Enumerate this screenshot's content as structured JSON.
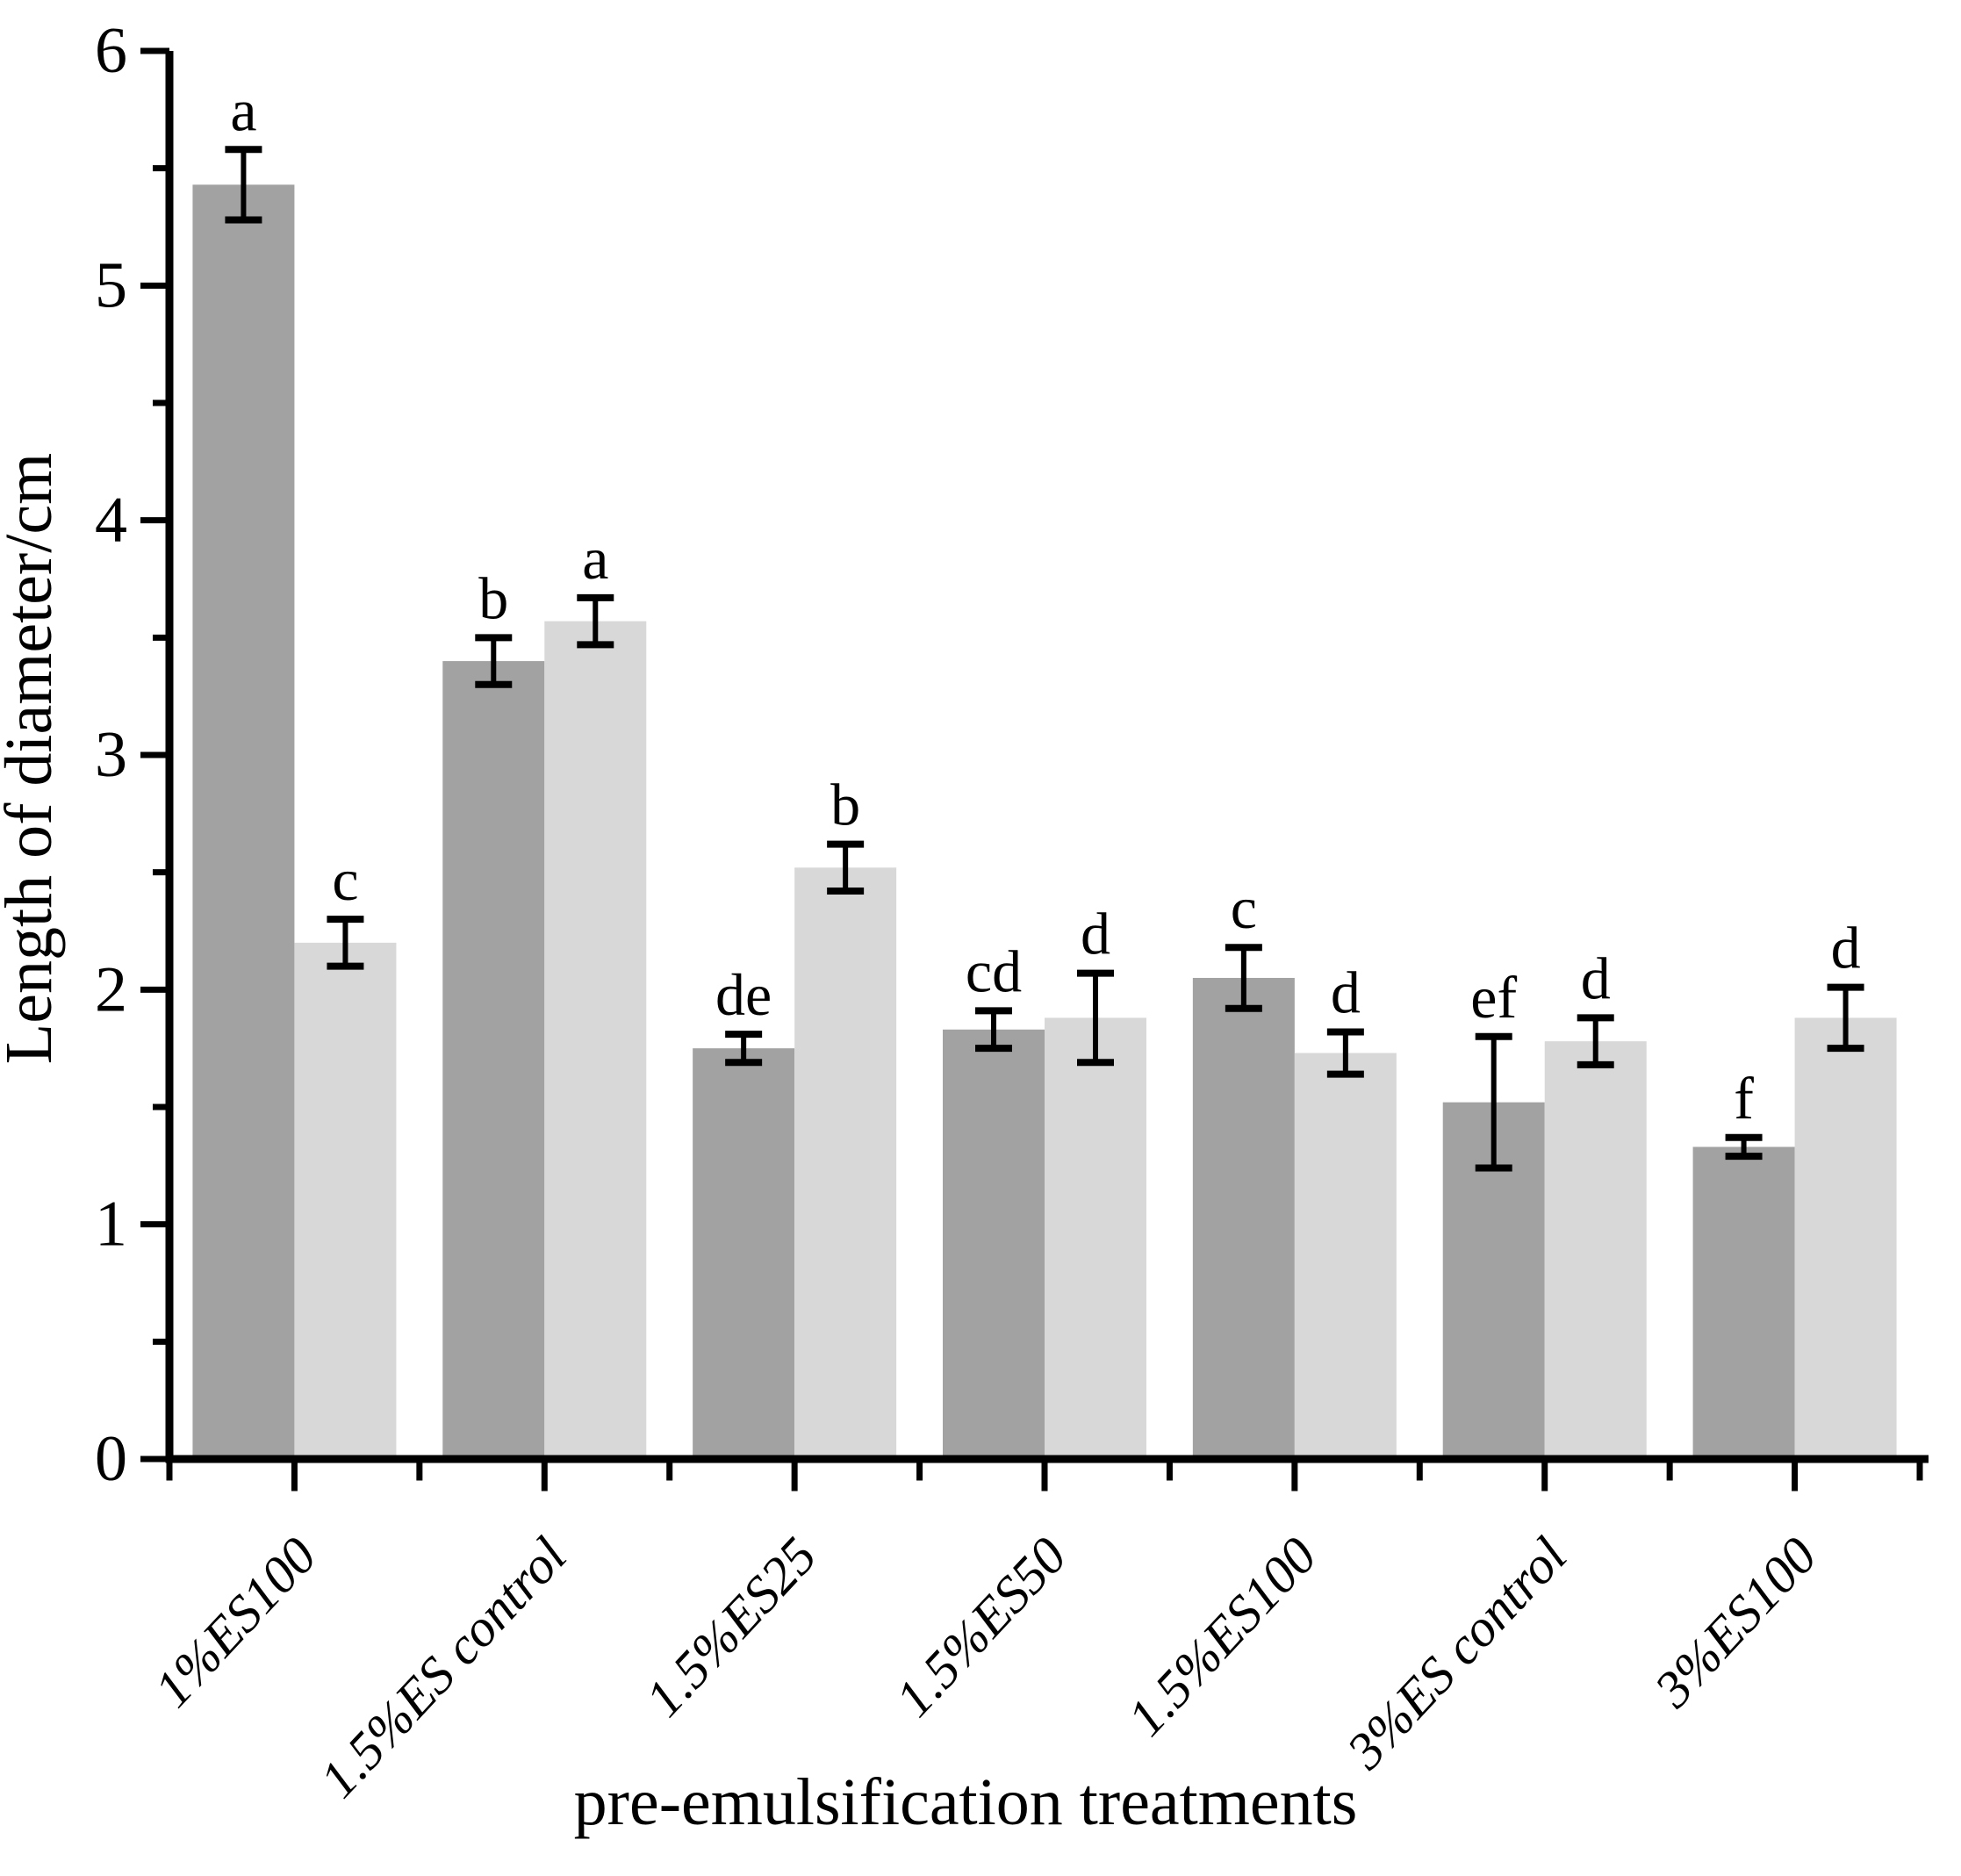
{
  "chart_data": {
    "type": "bar",
    "title": "",
    "xlabel": "pre-emulsification treatments",
    "ylabel": "Length of diameter/cm",
    "ylim": [
      0,
      6
    ],
    "y_major_step": 1,
    "y_minor_step": 0.5,
    "y_tick_labels": [
      "0",
      "1",
      "2",
      "3",
      "4",
      "5",
      "6"
    ],
    "grid": false,
    "legend_position": "none",
    "error_bars": true,
    "categories": [
      "1%ES100",
      "1.5%ES control",
      "1.5%ES25",
      "1.5%ES50",
      "1.5%ES100",
      "3%ES control",
      "3%ES100"
    ],
    "series": [
      {
        "name": "dark-gray-series",
        "color": "#a2a2a2",
        "values": [
          5.43,
          3.4,
          1.75,
          1.83,
          2.05,
          1.52,
          1.33
        ],
        "errors": [
          0.15,
          0.1,
          0.06,
          0.08,
          0.13,
          0.28,
          0.04
        ],
        "sig_letters": [
          "a",
          "b",
          "de",
          "cd",
          "c",
          "ef",
          "f"
        ]
      },
      {
        "name": "light-gray-series",
        "color": "#d8d8d8",
        "values": [
          2.2,
          3.57,
          2.52,
          1.88,
          1.73,
          1.78,
          1.88
        ],
        "errors": [
          0.1,
          0.1,
          0.1,
          0.19,
          0.09,
          0.1,
          0.13
        ],
        "sig_letters": [
          "c",
          "a",
          "b",
          "d",
          "d",
          "d",
          "d"
        ]
      }
    ],
    "colors": {
      "axis": "#000000",
      "error_bar": "#000000",
      "background": "#ffffff"
    }
  }
}
